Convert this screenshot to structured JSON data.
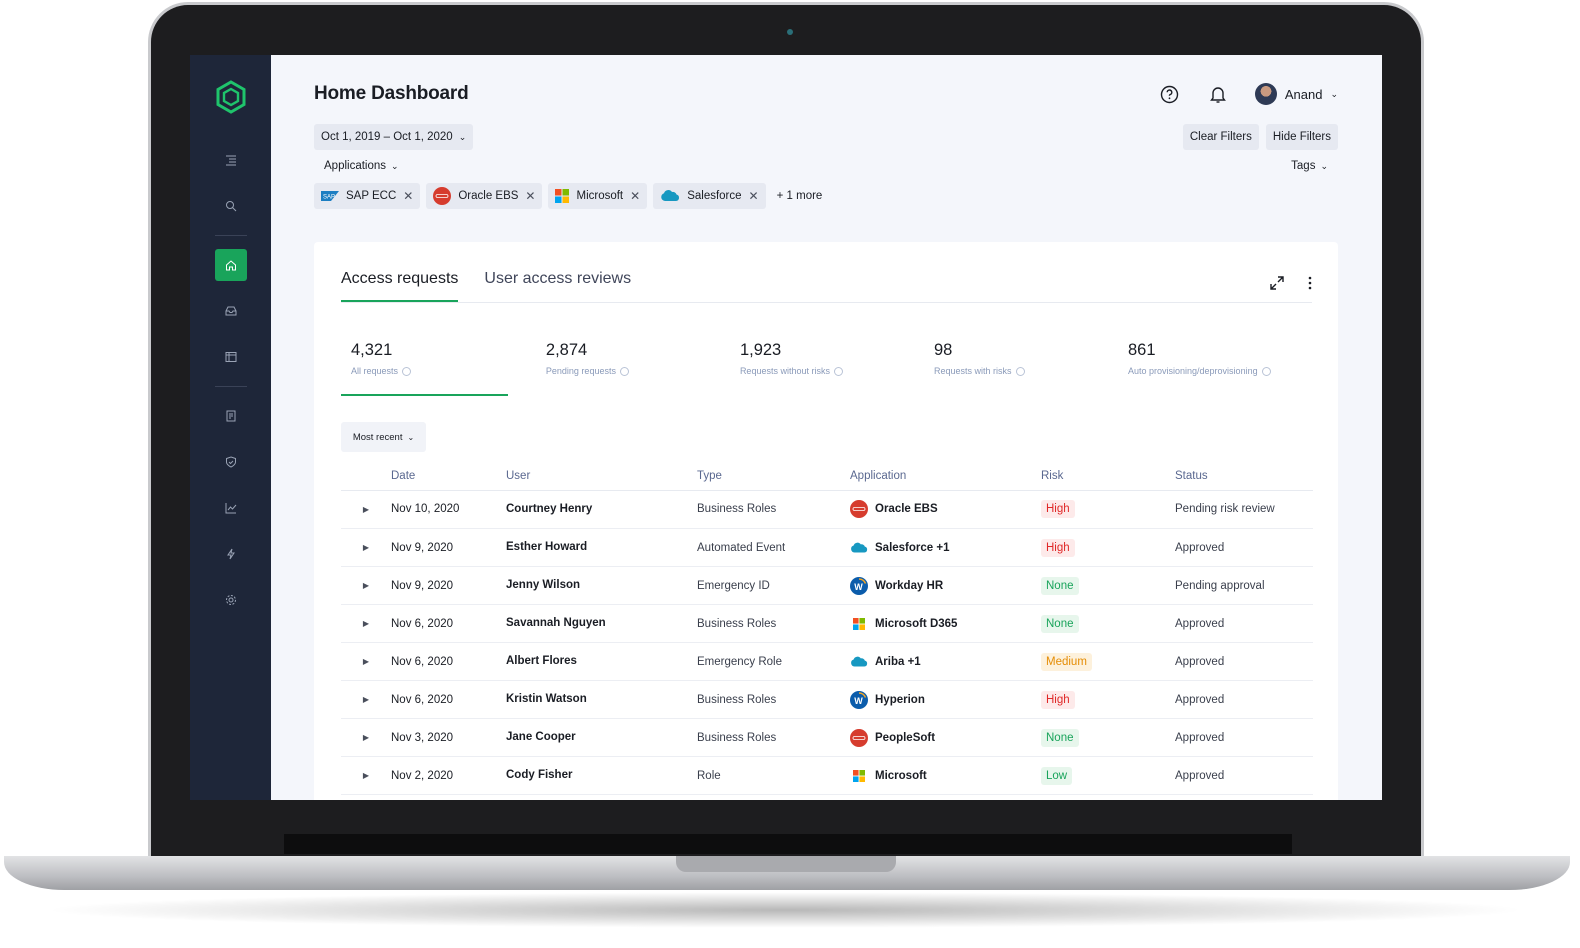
{
  "header": {
    "title": "Home Dashboard",
    "user_name": "Anand"
  },
  "filters": {
    "date_range": "Oct 1, 2019 – Oct 1, 2020",
    "clear_label": "Clear Filters",
    "hide_label": "Hide Filters",
    "applications_label": "Applications",
    "tags_label": "Tags",
    "chips": [
      {
        "label": "SAP ECC",
        "icon": "sap-icon"
      },
      {
        "label": "Oracle EBS",
        "icon": "oracle-icon"
      },
      {
        "label": "Microsoft",
        "icon": "microsoft-icon"
      },
      {
        "label": "Salesforce",
        "icon": "salesforce-icon"
      }
    ],
    "more_label": "+ 1 more"
  },
  "card": {
    "tabs": [
      {
        "label": "Access requests",
        "active": true
      },
      {
        "label": "User access reviews",
        "active": false
      }
    ],
    "stats": [
      {
        "value": "4,321",
        "label": "All requests"
      },
      {
        "value": "2,874",
        "label": "Pending requests"
      },
      {
        "value": "1,923",
        "label": "Requests without risks"
      },
      {
        "value": "98",
        "label": "Requests with risks"
      },
      {
        "value": "861",
        "label": "Auto provisioning/deprovisioning"
      }
    ],
    "sort_label": "Most recent",
    "columns": [
      "Date",
      "User",
      "Type",
      "Application",
      "Risk",
      "Status"
    ],
    "rows": [
      {
        "date": "Nov 10, 2020",
        "user": "Courtney Henry",
        "type": "Business Roles",
        "app": "Oracle EBS",
        "app_icon": "oracle-icon",
        "risk": "High",
        "risk_level": "high",
        "status": "Pending risk review"
      },
      {
        "date": "Nov 9, 2020",
        "user": "Esther Howard",
        "type": "Automated Event",
        "app": "Salesforce +1",
        "app_icon": "salesforce-icon",
        "risk": "High",
        "risk_level": "high",
        "status": "Approved"
      },
      {
        "date": "Nov 9, 2020",
        "user": "Jenny Wilson",
        "type": "Emergency ID",
        "app": "Workday HR",
        "app_icon": "workday-icon",
        "risk": "None",
        "risk_level": "none",
        "status": "Pending approval"
      },
      {
        "date": "Nov 6, 2020",
        "user": "Savannah Nguyen",
        "type": "Business Roles",
        "app": "Microsoft D365",
        "app_icon": "microsoft-icon",
        "risk": "None",
        "risk_level": "none",
        "status": "Approved"
      },
      {
        "date": "Nov 6, 2020",
        "user": "Albert Flores",
        "type": "Emergency Role",
        "app": "Ariba +1",
        "app_icon": "salesforce-icon",
        "risk": "Medium",
        "risk_level": "medium",
        "status": "Approved"
      },
      {
        "date": "Nov 6, 2020",
        "user": "Kristin Watson",
        "type": "Business Roles",
        "app": "Hyperion",
        "app_icon": "workday-icon",
        "risk": "High",
        "risk_level": "high",
        "status": "Approved"
      },
      {
        "date": "Nov 3, 2020",
        "user": "Jane Cooper",
        "type": "Business Roles",
        "app": "PeopleSoft",
        "app_icon": "oracle-icon",
        "risk": "None",
        "risk_level": "none",
        "status": "Approved"
      },
      {
        "date": "Nov 2, 2020",
        "user": "Cody Fisher",
        "type": "Role",
        "app": "Microsoft",
        "app_icon": "microsoft-icon",
        "risk": "Low",
        "risk_level": "low",
        "status": "Approved"
      }
    ]
  },
  "colors": {
    "accent": "#19a45b",
    "sidebar": "#1e2639",
    "risk_high": "#e02828",
    "risk_medium": "#e58d05",
    "risk_none": "#19a45b"
  }
}
